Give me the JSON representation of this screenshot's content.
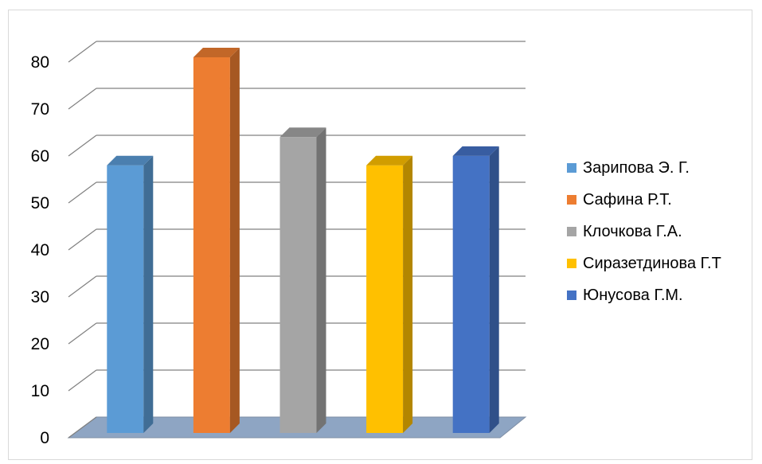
{
  "chart_data": {
    "type": "bar",
    "title": "",
    "xlabel": "",
    "ylabel": "",
    "ylim": [
      0,
      80
    ],
    "yticks": [
      0,
      10,
      20,
      30,
      40,
      50,
      60,
      70,
      80
    ],
    "grid": true,
    "three_d": true,
    "legend_position": "right",
    "floor_color": "#8ea5c3",
    "series": [
      {
        "name": "Зарипова Э. Г.",
        "value": 57,
        "color": "#5b9bd5"
      },
      {
        "name": "Сафина Р.Т.",
        "value": 80,
        "color": "#ed7d31"
      },
      {
        "name": "Клочкова Г.А.",
        "value": 63,
        "color": "#a5a5a5"
      },
      {
        "name": "Сиразетдинова Г.Т",
        "value": 57,
        "color": "#ffc000"
      },
      {
        "name": "Юнусова Г.М.",
        "value": 59,
        "color": "#4472c4"
      }
    ]
  }
}
